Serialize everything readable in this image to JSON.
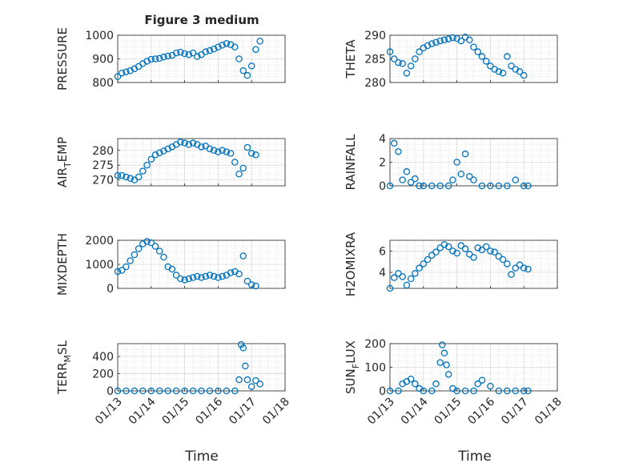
{
  "figure": {
    "title": "Figure 3 medium",
    "background": "#ffffff",
    "marker_color": "#0072BD",
    "grid_color": "#c8c8c8"
  },
  "chart_data": [
    {
      "type": "scatter",
      "ylabel": "PRESSURE",
      "xlim": [
        "01/13",
        "01/18"
      ],
      "ylim": [
        800,
        1000
      ],
      "yticks": [
        "800",
        "900",
        "1000"
      ],
      "grid": true,
      "x": [
        "01/13 00:00",
        "01/13 03:00",
        "01/13 06:00",
        "01/13 09:00",
        "01/13 12:00",
        "01/13 15:00",
        "01/13 18:00",
        "01/13 21:00",
        "01/14 00:00",
        "01/14 03:00",
        "01/14 06:00",
        "01/14 09:00",
        "01/14 12:00",
        "01/14 15:00",
        "01/14 18:00",
        "01/14 21:00",
        "01/15 00:00",
        "01/15 03:00",
        "01/15 06:00",
        "01/15 09:00",
        "01/15 12:00",
        "01/15 15:00",
        "01/15 18:00",
        "01/15 21:00",
        "01/16 00:00",
        "01/16 03:00",
        "01/16 06:00",
        "01/16 09:00",
        "01/16 12:00",
        "01/16 15:00",
        "01/16 18:00",
        "01/16 21:00",
        "01/17 00:00",
        "01/17 03:00",
        "01/17 06:00"
      ],
      "y": [
        825,
        840,
        845,
        850,
        858,
        868,
        880,
        890,
        898,
        900,
        902,
        908,
        912,
        915,
        925,
        928,
        922,
        918,
        925,
        910,
        918,
        930,
        935,
        942,
        950,
        958,
        965,
        960,
        950,
        900,
        850,
        830,
        870,
        940,
        975
      ]
    },
    {
      "type": "scatter",
      "ylabel": "THETA",
      "xlim": [
        "01/13",
        "01/18"
      ],
      "ylim": [
        280,
        290
      ],
      "yticks": [
        "280",
        "285",
        "290"
      ],
      "grid": true,
      "x": [
        "01/13 00:00",
        "01/13 03:00",
        "01/13 06:00",
        "01/13 09:00",
        "01/13 12:00",
        "01/13 15:00",
        "01/13 18:00",
        "01/13 21:00",
        "01/14 00:00",
        "01/14 03:00",
        "01/14 06:00",
        "01/14 09:00",
        "01/14 12:00",
        "01/14 15:00",
        "01/14 18:00",
        "01/14 21:00",
        "01/15 00:00",
        "01/15 03:00",
        "01/15 06:00",
        "01/15 09:00",
        "01/15 12:00",
        "01/15 15:00",
        "01/15 18:00",
        "01/15 21:00",
        "01/16 00:00",
        "01/16 03:00",
        "01/16 06:00",
        "01/16 09:00",
        "01/16 12:00",
        "01/16 15:00",
        "01/16 18:00",
        "01/16 21:00",
        "01/17 00:00"
      ],
      "y": [
        286.5,
        285,
        284.2,
        284,
        282,
        283.5,
        285,
        286.5,
        287.3,
        287.8,
        288.2,
        288.5,
        288.8,
        289,
        289.2,
        289.5,
        289.3,
        288.8,
        289.6,
        289,
        287.5,
        286.5,
        285.5,
        284.5,
        283.5,
        282.8,
        282.3,
        282,
        285.5,
        283.5,
        282.8,
        282.3,
        281.5
      ]
    },
    {
      "type": "scatter",
      "ylabel": "AIR_TEMP",
      "ylabel_main": "AIR",
      "ylabel_sub": "T",
      "ylabel_tail": "EMP",
      "xlim": [
        "01/13",
        "01/18"
      ],
      "ylim": [
        268,
        284
      ],
      "yticks": [
        "270",
        "275",
        "280"
      ],
      "grid": true,
      "x": [
        "01/13 00:00",
        "01/13 03:00",
        "01/13 06:00",
        "01/13 09:00",
        "01/13 12:00",
        "01/13 15:00",
        "01/13 18:00",
        "01/13 21:00",
        "01/14 00:00",
        "01/14 03:00",
        "01/14 06:00",
        "01/14 09:00",
        "01/14 12:00",
        "01/14 15:00",
        "01/14 18:00",
        "01/14 21:00",
        "01/15 00:00",
        "01/15 03:00",
        "01/15 06:00",
        "01/15 09:00",
        "01/15 12:00",
        "01/15 15:00",
        "01/15 18:00",
        "01/15 21:00",
        "01/16 00:00",
        "01/16 03:00",
        "01/16 06:00",
        "01/16 09:00",
        "01/16 12:00",
        "01/16 15:00",
        "01/16 18:00",
        "01/16 21:00",
        "01/17 00:00",
        "01/17 03:00"
      ],
      "y": [
        271.5,
        271.5,
        271,
        270.5,
        270,
        271,
        273,
        275,
        277,
        278.5,
        279.2,
        279.8,
        280.5,
        281.2,
        282,
        282.8,
        282.5,
        282,
        282.5,
        282,
        281.2,
        281.5,
        280.5,
        280,
        279.5,
        280,
        279.5,
        279,
        276,
        272,
        274,
        281,
        279,
        278.5
      ]
    },
    {
      "type": "scatter",
      "ylabel": "RAINFALL",
      "xlim": [
        "01/13",
        "01/18"
      ],
      "ylim": [
        0,
        4
      ],
      "yticks": [
        "0",
        "2",
        "4"
      ],
      "grid": true,
      "x": [
        "01/13 00:00",
        "01/13 03:00",
        "01/13 06:00",
        "01/13 09:00",
        "01/13 12:00",
        "01/13 15:00",
        "01/13 18:00",
        "01/13 21:00",
        "01/14 00:00",
        "01/14 06:00",
        "01/14 12:00",
        "01/14 18:00",
        "01/14 21:00",
        "01/15 00:00",
        "01/15 03:00",
        "01/15 06:00",
        "01/15 09:00",
        "01/15 12:00",
        "01/15 18:00",
        "01/16 00:00",
        "01/16 06:00",
        "01/16 12:00",
        "01/16 18:00",
        "01/17 00:00",
        "01/17 03:00"
      ],
      "y": [
        0,
        3.6,
        2.9,
        0.5,
        1.2,
        0.3,
        0.6,
        0,
        0,
        0,
        0,
        0,
        0.5,
        2,
        1,
        2.7,
        0.8,
        0.5,
        0,
        0,
        0,
        0,
        0.5,
        0,
        0
      ]
    },
    {
      "type": "scatter",
      "ylabel": "MIXDEPTH",
      "xlim": [
        "01/13",
        "01/18"
      ],
      "ylim": [
        0,
        2000
      ],
      "yticks": [
        "0",
        "1000",
        "2000"
      ],
      "grid": true,
      "x": [
        "01/13 00:00",
        "01/13 03:00",
        "01/13 06:00",
        "01/13 09:00",
        "01/13 12:00",
        "01/13 15:00",
        "01/13 18:00",
        "01/13 21:00",
        "01/14 00:00",
        "01/14 03:00",
        "01/14 06:00",
        "01/14 09:00",
        "01/14 12:00",
        "01/14 15:00",
        "01/14 18:00",
        "01/14 21:00",
        "01/15 00:00",
        "01/15 03:00",
        "01/15 06:00",
        "01/15 09:00",
        "01/15 12:00",
        "01/15 15:00",
        "01/15 18:00",
        "01/15 21:00",
        "01/16 00:00",
        "01/16 03:00",
        "01/16 06:00",
        "01/16 09:00",
        "01/16 12:00",
        "01/16 15:00",
        "01/16 18:00",
        "01/16 21:00",
        "01/17 00:00",
        "01/17 03:00"
      ],
      "y": [
        700,
        750,
        900,
        1150,
        1400,
        1650,
        1850,
        1950,
        1900,
        1750,
        1550,
        1300,
        900,
        800,
        550,
        400,
        350,
        400,
        450,
        500,
        450,
        500,
        550,
        500,
        450,
        500,
        550,
        650,
        700,
        600,
        1350,
        300,
        150,
        100
      ]
    },
    {
      "type": "scatter",
      "ylabel": "H2OMIXRA",
      "xlim": [
        "01/13",
        "01/18"
      ],
      "ylim": [
        2.5,
        7
      ],
      "yticks": [
        "4",
        "6"
      ],
      "grid": true,
      "x": [
        "01/13 00:00",
        "01/13 03:00",
        "01/13 06:00",
        "01/13 09:00",
        "01/13 12:00",
        "01/13 15:00",
        "01/13 18:00",
        "01/13 21:00",
        "01/14 00:00",
        "01/14 03:00",
        "01/14 06:00",
        "01/14 09:00",
        "01/14 12:00",
        "01/14 15:00",
        "01/14 18:00",
        "01/14 21:00",
        "01/15 00:00",
        "01/15 03:00",
        "01/15 06:00",
        "01/15 09:00",
        "01/15 12:00",
        "01/15 15:00",
        "01/15 18:00",
        "01/15 21:00",
        "01/16 00:00",
        "01/16 03:00",
        "01/16 06:00",
        "01/16 09:00",
        "01/16 12:00",
        "01/16 15:00",
        "01/16 18:00",
        "01/16 21:00",
        "01/17 00:00",
        "01/17 03:00"
      ],
      "y": [
        2.5,
        3.5,
        3.9,
        3.6,
        2.8,
        3.4,
        3.9,
        4.4,
        4.8,
        5.2,
        5.6,
        5.9,
        6.3,
        6.6,
        6.4,
        6,
        5.8,
        6.5,
        6.2,
        5.7,
        5.4,
        6.3,
        6.1,
        6.4,
        6,
        5.9,
        5.5,
        5.2,
        4.8,
        3.8,
        4.4,
        4.7,
        4.4,
        4.3
      ]
    },
    {
      "type": "scatter",
      "ylabel": "TERR_MSL",
      "ylabel_main": "TERR",
      "ylabel_sub": "M",
      "ylabel_tail": "SL",
      "xlim": [
        "01/13",
        "01/18"
      ],
      "ylim": [
        0,
        550
      ],
      "yticks": [
        "0",
        "200",
        "400"
      ],
      "grid": true,
      "x": [
        "01/13 00:00",
        "01/13 06:00",
        "01/13 12:00",
        "01/13 18:00",
        "01/14 00:00",
        "01/14 06:00",
        "01/14 12:00",
        "01/14 18:00",
        "01/15 00:00",
        "01/15 06:00",
        "01/15 12:00",
        "01/15 18:00",
        "01/16 00:00",
        "01/16 06:00",
        "01/16 12:00",
        "01/16 15:00",
        "01/16 16:30",
        "01/16 18:00",
        "01/16 19:30",
        "01/16 21:00",
        "01/17 00:00",
        "01/17 03:00",
        "01/17 06:00"
      ],
      "y": [
        0,
        0,
        0,
        0,
        0,
        0,
        0,
        0,
        0,
        0,
        0,
        0,
        0,
        0,
        0,
        130,
        540,
        500,
        290,
        130,
        50,
        120,
        80
      ]
    },
    {
      "type": "scatter",
      "ylabel": "SUN_FLUX",
      "ylabel_main": "SUN",
      "ylabel_sub": "F",
      "ylabel_tail": "LUX",
      "xlim": [
        "01/13",
        "01/18"
      ],
      "ylim": [
        0,
        200
      ],
      "yticks": [
        "0",
        "100",
        "200"
      ],
      "grid": true,
      "x": [
        "01/13 00:00",
        "01/13 06:00",
        "01/13 09:00",
        "01/13 12:00",
        "01/13 15:00",
        "01/13 18:00",
        "01/13 21:00",
        "01/14 00:00",
        "01/14 06:00",
        "01/14 09:00",
        "01/14 12:00",
        "01/14 13:30",
        "01/14 15:00",
        "01/14 16:30",
        "01/14 18:00",
        "01/14 21:00",
        "01/15 00:00",
        "01/15 06:00",
        "01/15 12:00",
        "01/15 15:00",
        "01/15 18:00",
        "01/16 00:00",
        "01/16 06:00",
        "01/16 12:00",
        "01/16 18:00",
        "01/17 00:00",
        "01/17 03:00"
      ],
      "y": [
        0,
        0,
        30,
        40,
        50,
        30,
        10,
        0,
        0,
        30,
        120,
        195,
        160,
        110,
        70,
        10,
        0,
        0,
        0,
        30,
        45,
        20,
        0,
        0,
        0,
        0,
        0
      ]
    }
  ],
  "xticks": [
    "01/13",
    "01/14",
    "01/15",
    "01/16",
    "01/17",
    "01/18"
  ],
  "xlabel": "Time"
}
